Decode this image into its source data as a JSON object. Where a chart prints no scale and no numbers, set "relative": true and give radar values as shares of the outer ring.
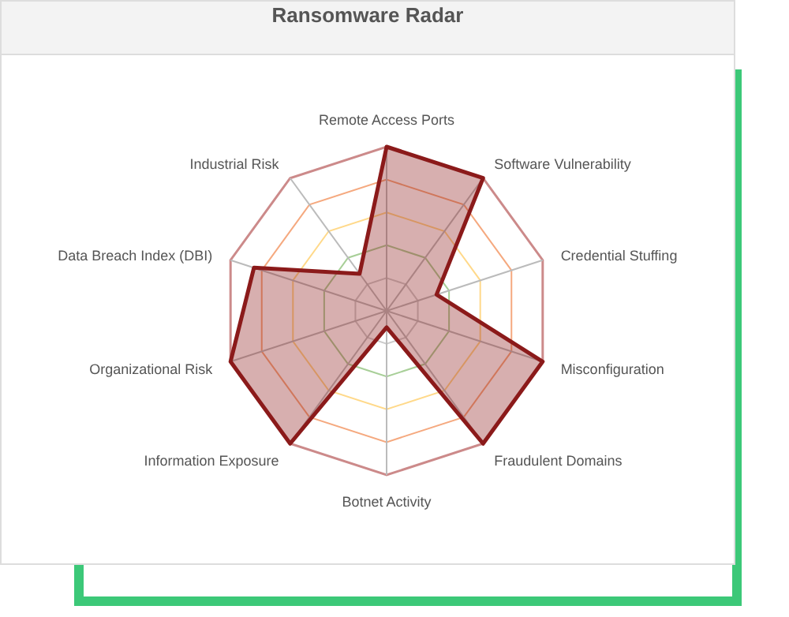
{
  "chart_data": {
    "type": "radar",
    "title": "Ransomware Radar",
    "relative": true,
    "grid": true,
    "categories": [
      "Remote Access Ports",
      "Software Vulnerability",
      "Credential Stuffing",
      "Misconfiguration",
      "Fraudulent Domains",
      "Botnet Activity",
      "Information Exposure",
      "Organizational Risk",
      "Data Breach Index (DBI)",
      "Industrial Risk"
    ],
    "series": [
      {
        "color": "#8b1a1a",
        "values": [
          1,
          1,
          0.32,
          1,
          1,
          0.1,
          1,
          1,
          0.85,
          0.28
        ]
      }
    ]
  }
}
